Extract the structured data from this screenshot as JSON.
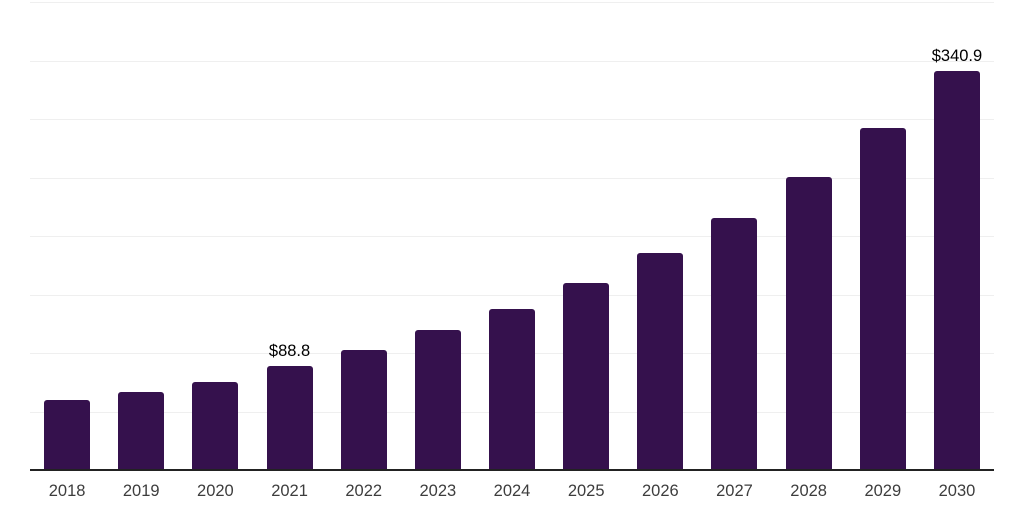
{
  "chart_data": {
    "type": "bar",
    "title": "",
    "xlabel": "",
    "ylabel": "",
    "categories": [
      "2018",
      "2019",
      "2020",
      "2021",
      "2022",
      "2023",
      "2024",
      "2025",
      "2026",
      "2027",
      "2028",
      "2029",
      "2030"
    ],
    "values": [
      59.5,
      66.5,
      75.3,
      88.8,
      103.0,
      119.5,
      138.0,
      160.0,
      185.5,
      215.5,
      250.5,
      292.5,
      340.9
    ],
    "labeled_points": [
      {
        "category": "2021",
        "label": "$88.8"
      },
      {
        "category": "2030",
        "label": "$340.9"
      }
    ],
    "ylim": [
      0,
      400
    ],
    "gridline_interval": 50,
    "grid": "horizontal-only",
    "legend": "none",
    "y_axis_labels": "none"
  },
  "style": {
    "bar_color": "#35114d",
    "grid_color": "#efefef",
    "axis_line_color": "#222222",
    "tick_label_color": "#3d3d3d",
    "data_label_color": "#000000",
    "background": "#ffffff"
  }
}
